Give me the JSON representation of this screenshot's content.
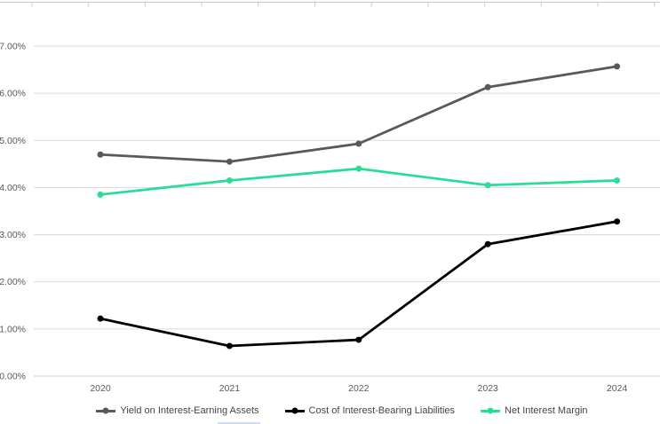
{
  "chart_data": {
    "type": "line",
    "title": "",
    "xlabel": "",
    "ylabel": "",
    "categories": [
      "2020",
      "2021",
      "2022",
      "2023",
      "2024"
    ],
    "series": [
      {
        "name": "Yield on Interest-Earning Assets",
        "color": "#595959",
        "values": [
          4.7,
          4.55,
          4.93,
          6.13,
          6.57
        ]
      },
      {
        "name": "Cost of Interest-Bearing Liabilities",
        "color": "#000000",
        "values": [
          1.22,
          0.64,
          0.77,
          2.8,
          3.28
        ]
      },
      {
        "name": "Net Interest Margin",
        "color": "#29DD96",
        "values": [
          3.85,
          4.15,
          4.4,
          4.05,
          4.15
        ]
      }
    ],
    "ylim": [
      0,
      7
    ],
    "yticks": [
      {
        "value": 0,
        "label": "0.00%"
      },
      {
        "value": 1,
        "label": "1.00%"
      },
      {
        "value": 2,
        "label": "2.00%"
      },
      {
        "value": 3,
        "label": "3.00%"
      },
      {
        "value": 4,
        "label": "4.00%"
      },
      {
        "value": 5,
        "label": "5.00%"
      },
      {
        "value": 6,
        "label": "6.00%"
      },
      {
        "value": 7,
        "label": "7.00%"
      }
    ],
    "grid": true,
    "legend_position": "bottom",
    "marker": "circle"
  },
  "colors": {
    "background": "#ffffff",
    "gridline": "#d9d9d9",
    "axis_line": "#d0d0d0",
    "tick_text": "#595959",
    "legend_text": "#444444",
    "ruler_line": "#c8c8c8",
    "artifact_blue": "#a9c0e0"
  }
}
